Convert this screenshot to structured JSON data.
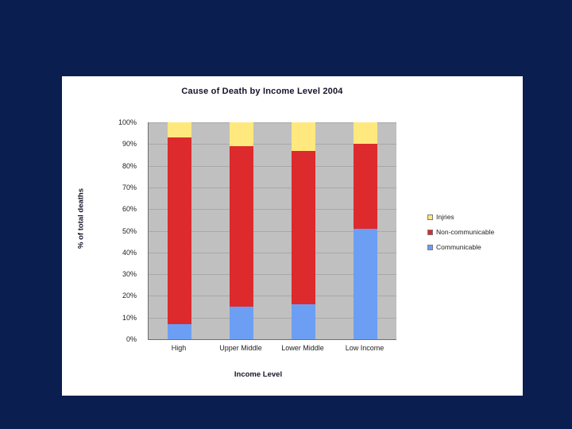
{
  "colors": {
    "background": "#0a1e4f",
    "panel": "#ffffff",
    "plot_background": "#c0c0c0",
    "gridline": "#a8a8a8"
  },
  "chart_data": {
    "type": "bar",
    "variant": "stacked-100",
    "title": "Cause of Death by Income Level 2004",
    "xlabel": "Income Level",
    "ylabel": "% of total deaths",
    "categories": [
      "High",
      "Upper Middle",
      "Lower Middle",
      "Low Income"
    ],
    "series": [
      {
        "name": "Communicable",
        "color": "#6c9ff3",
        "values": [
          7,
          15,
          16,
          51
        ]
      },
      {
        "name": "Non-communicable",
        "color": "#dd2a2c",
        "values": [
          86,
          74,
          71,
          39
        ]
      },
      {
        "name": "Injries",
        "color": "#ffe87e",
        "values": [
          7,
          11,
          13,
          10
        ]
      }
    ],
    "legend": [
      {
        "label": "Injries",
        "color": "#ffe87e"
      },
      {
        "label": "Non-communicable",
        "color": "#dd2a2c"
      },
      {
        "label": "Communicable",
        "color": "#6c9ff3"
      }
    ],
    "legend_position": "right",
    "grid": true,
    "ylim": [
      0,
      100
    ],
    "ytick_step": 10,
    "ytick_labels": [
      "0%",
      "10%",
      "20%",
      "30%",
      "40%",
      "50%",
      "60%",
      "70%",
      "80%",
      "90%",
      "100%"
    ]
  }
}
